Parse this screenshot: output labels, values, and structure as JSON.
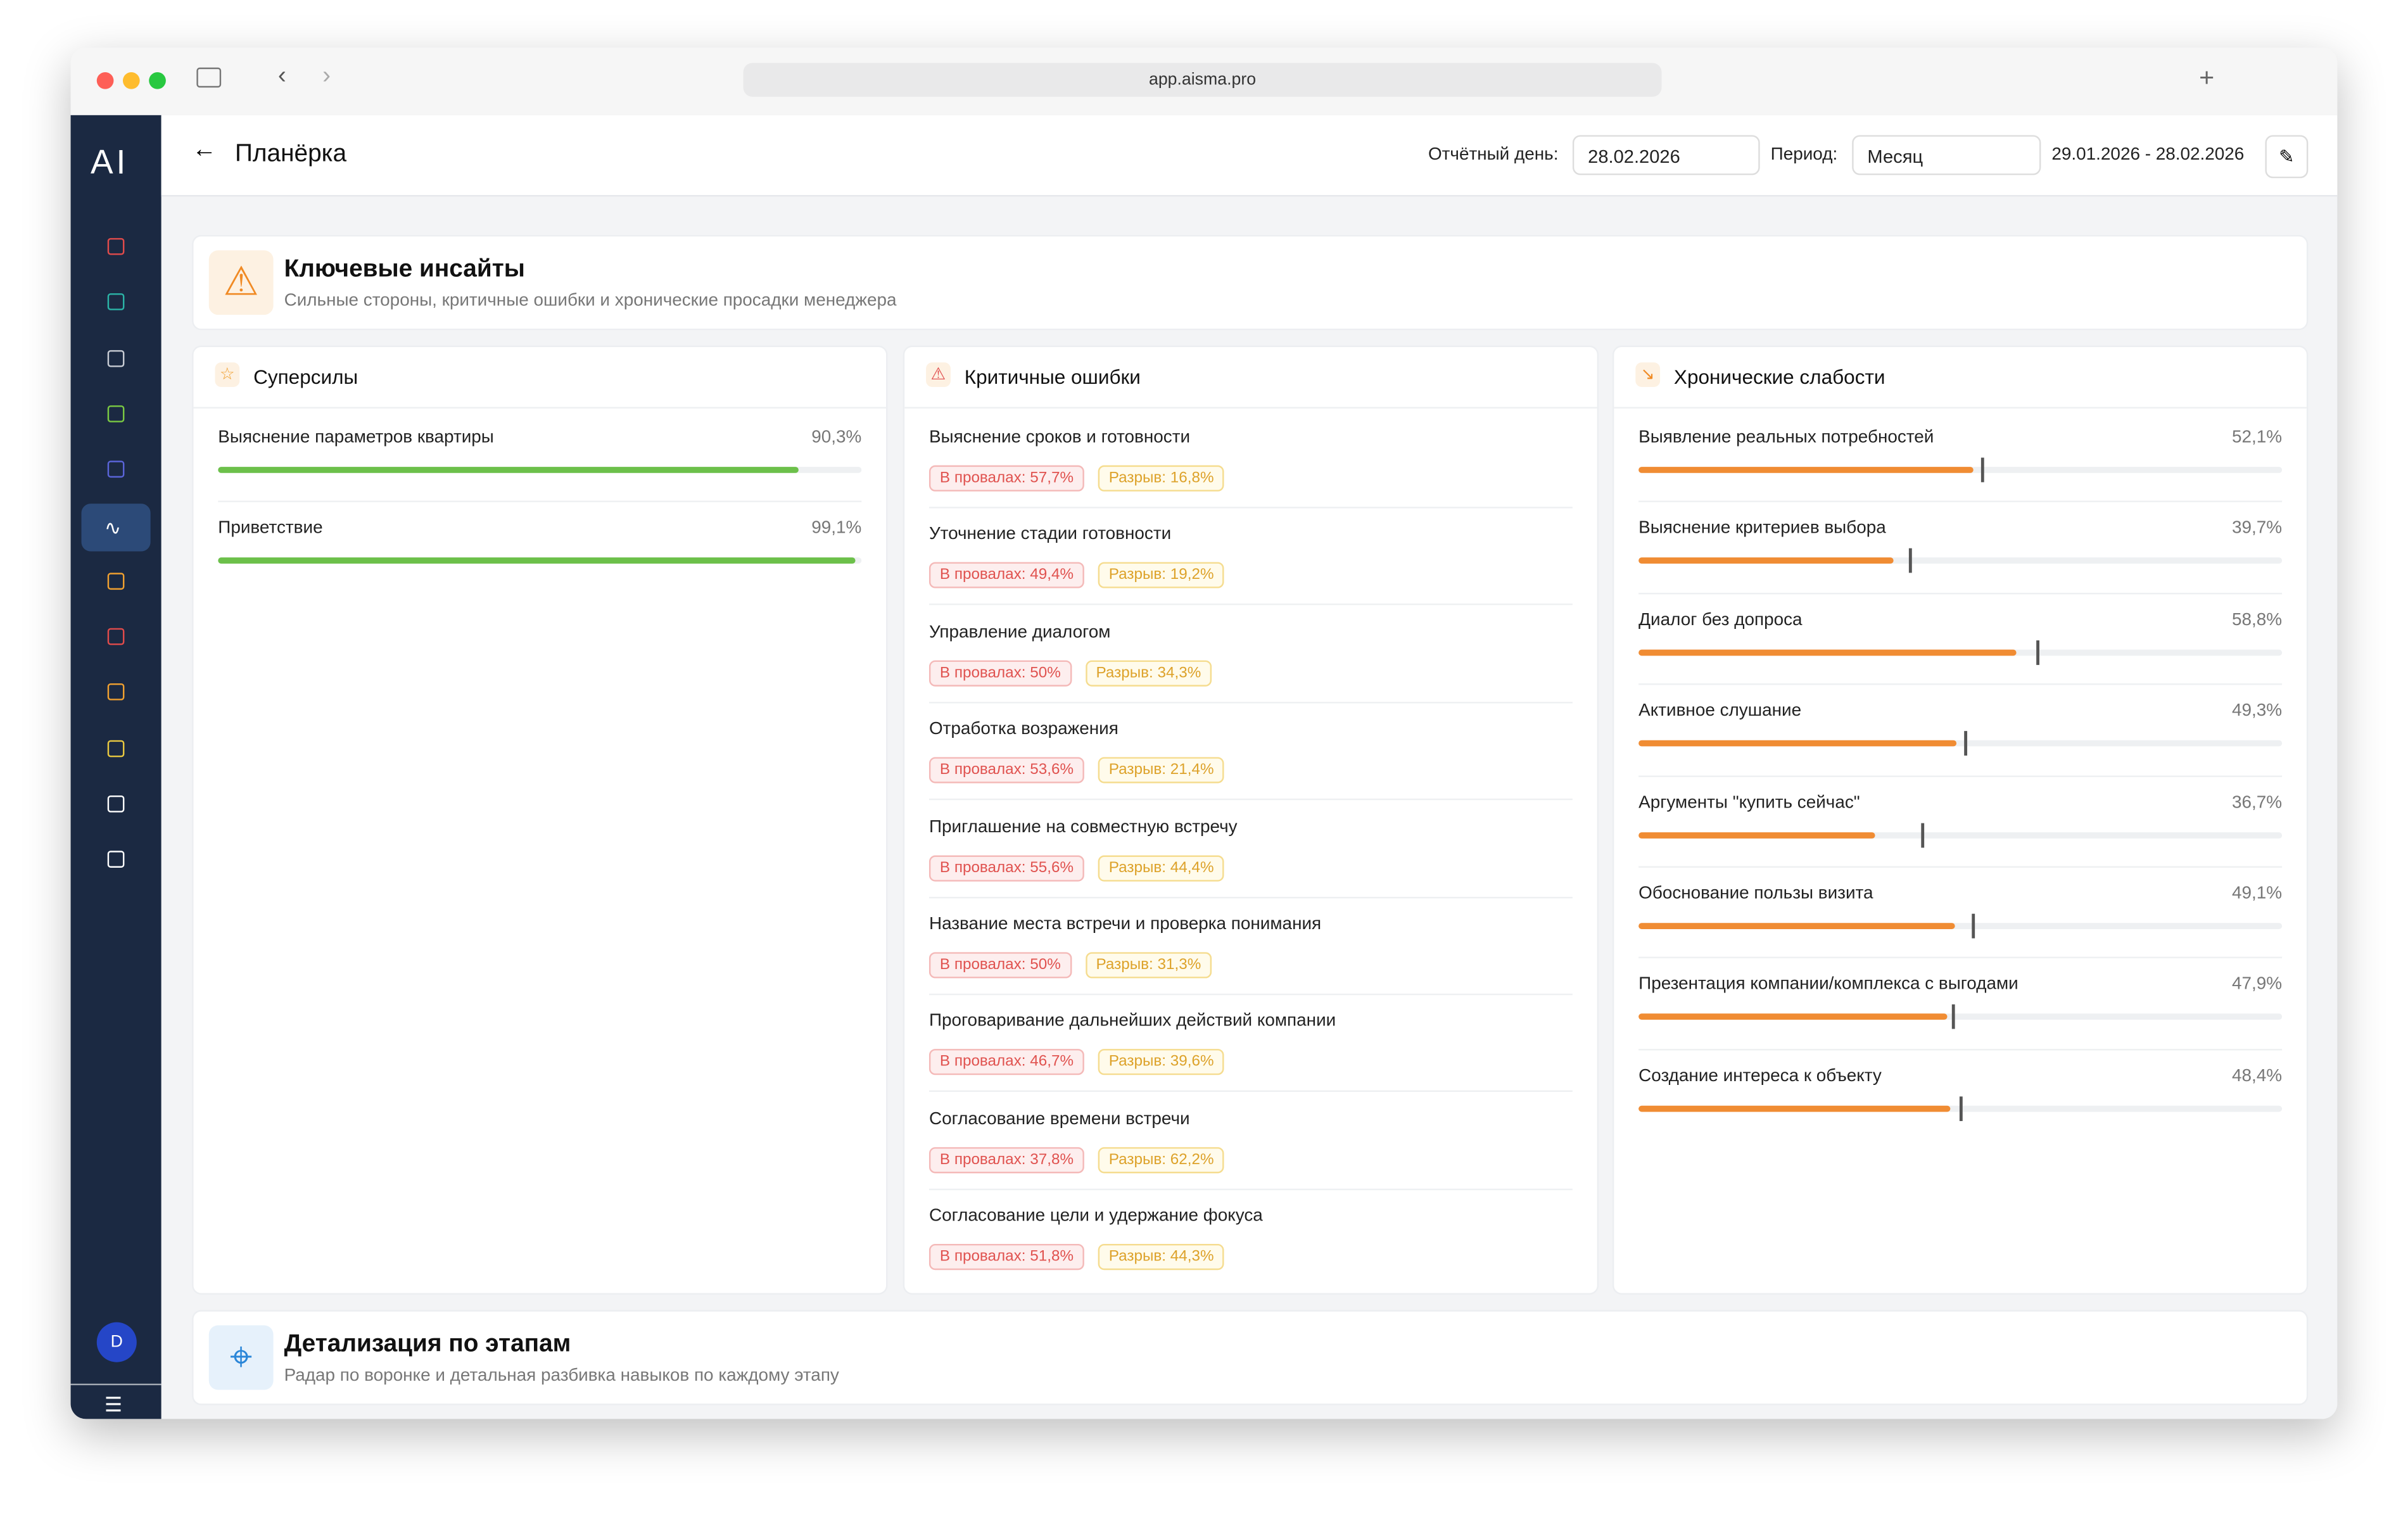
{
  "browser": {
    "url": "app.aisma.pro"
  },
  "sidebar": {
    "logo": "AI",
    "avatar": "D"
  },
  "header": {
    "title": "Планёрка",
    "report_day_label": "Отчётный день:",
    "report_day": "28.02.2026",
    "period_label": "Период:",
    "period": "Месяц",
    "range": "29.01.2026 - 28.02.2026"
  },
  "insights": {
    "title": "Ключевые инсайты",
    "subtitle": "Сильные стороны, критичные ошибки и хронические просадки менеджера"
  },
  "superpowers": {
    "title": "Суперсилы",
    "items": [
      {
        "name": "Выяснение параметров квартиры",
        "value": 90.3,
        "value_label": "90,3%"
      },
      {
        "name": "Приветствие",
        "value": 99.1,
        "value_label": "99,1%"
      }
    ]
  },
  "critical": {
    "title": "Критичные ошибки",
    "items": [
      {
        "name": "Выяснение сроков и готовности",
        "fail": "В провалах: 57,7%",
        "gap": "Разрыв: 16,8%"
      },
      {
        "name": "Уточнение стадии готовности",
        "fail": "В провалах: 49,4%",
        "gap": "Разрыв: 19,2%"
      },
      {
        "name": "Управление диалогом",
        "fail": "В провалах: 50%",
        "gap": "Разрыв: 34,3%"
      },
      {
        "name": "Отработка возражения",
        "fail": "В провалах: 53,6%",
        "gap": "Разрыв: 21,4%"
      },
      {
        "name": "Приглашение на совместную встречу",
        "fail": "В провалах: 55,6%",
        "gap": "Разрыв: 44,4%"
      },
      {
        "name": "Название места встречи и проверка понимания",
        "fail": "В провалах: 50%",
        "gap": "Разрыв: 31,3%"
      },
      {
        "name": "Проговаривание дальнейших действий компании",
        "fail": "В провалах: 46,7%",
        "gap": "Разрыв: 39,6%"
      },
      {
        "name": "Согласование времени встречи",
        "fail": "В провалах: 37,8%",
        "gap": "Разрыв: 62,2%"
      },
      {
        "name": "Согласование цели и удержание фокуса",
        "fail": "В провалах: 51,8%",
        "gap": "Разрыв: 44,3%"
      }
    ]
  },
  "chronic": {
    "title": "Хронические слабости",
    "items": [
      {
        "name": "Выявление реальных потребностей",
        "value": 52.1,
        "value_label": "52,1%",
        "marker": 53.3
      },
      {
        "name": "Выяснение критериев выбора",
        "value": 39.7,
        "value_label": "39,7%",
        "marker": 42.1
      },
      {
        "name": "Диалог без допроса",
        "value": 58.8,
        "value_label": "58,8%",
        "marker": 61.9
      },
      {
        "name": "Активное слушание",
        "value": 49.3,
        "value_label": "49,3%",
        "marker": 50.7
      },
      {
        "name": "Аргументы \"купить сейчас\"",
        "value": 36.7,
        "value_label": "36,7%",
        "marker": 43.8
      },
      {
        "name": "Обоснование пользы визита",
        "value": 49.1,
        "value_label": "49,1%",
        "marker": 51.9
      },
      {
        "name": "Презентация компании/комплекса с выгодами",
        "value": 47.9,
        "value_label": "47,9%",
        "marker": 48.6
      },
      {
        "name": "Создание интереса к объекту",
        "value": 48.4,
        "value_label": "48,4%",
        "marker": 49.8
      }
    ]
  },
  "details": {
    "title": "Детализация по этапам",
    "subtitle": "Радар по воронке и детальная разбивка навыков по каждому этапу"
  }
}
